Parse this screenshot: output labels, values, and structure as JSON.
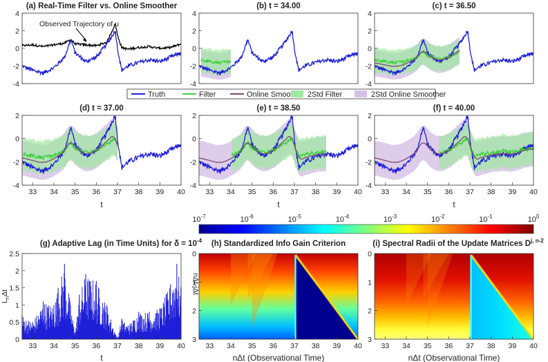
{
  "colors": {
    "truth": "#1f1fd8",
    "filter": "#3fd13f",
    "smoother": "#7a4a6e",
    "band_filter": "#9fe89f",
    "band_smoother": "#d6bfe6",
    "observed": "#000000"
  },
  "legend": {
    "entries": [
      "Truth",
      "Filter",
      "Online Smoother",
      "2Std Filter",
      "2Std Online Smoother"
    ]
  },
  "colorbar": {
    "scale": "log",
    "range": [
      1e-07,
      1
    ],
    "ticks": [
      {
        "base": "10",
        "exp": "-7"
      },
      {
        "base": "10",
        "exp": "-6"
      },
      {
        "base": "10",
        "exp": "-5"
      },
      {
        "base": "10",
        "exp": "-4"
      },
      {
        "base": "10",
        "exp": "-3"
      },
      {
        "base": "10",
        "exp": "-2"
      },
      {
        "base": "10",
        "exp": "-1"
      },
      {
        "base": "10",
        "exp": "0"
      }
    ]
  },
  "chart_data": [
    {
      "id": "a",
      "type": "line",
      "title": "(a) Real-Time Filter vs. Online Smoother",
      "annotation": "Observed Trajectory of u",
      "xlim": [
        32.5,
        40
      ],
      "ylim": [
        -4,
        4
      ],
      "yticks": [
        "4",
        "2",
        "0",
        "-2",
        "-4"
      ],
      "series": [
        {
          "name": "Observed Trajectory of u",
          "role": "observed",
          "x": [
            32.5,
            33,
            33.5,
            34,
            34.5,
            34.8,
            35,
            35.5,
            36,
            36.5,
            36.9,
            37,
            37.2,
            37.5,
            38,
            38.5,
            39,
            39.5,
            40
          ],
          "y": [
            0.3,
            0.4,
            0.2,
            0.4,
            0.6,
            1.0,
            0.5,
            0.4,
            0.3,
            0.7,
            2.8,
            1.5,
            0.1,
            -0.1,
            0.1,
            0.2,
            0.0,
            0.1,
            0.5
          ]
        },
        {
          "name": "Truth",
          "role": "truth",
          "x": [
            32.5,
            33,
            33.5,
            34,
            34.5,
            34.8,
            35,
            35.5,
            36,
            36.5,
            36.9,
            37,
            37.2,
            37.5,
            38,
            38.5,
            39,
            39.5,
            40
          ],
          "y": [
            -2.0,
            -2.5,
            -2.8,
            -2.2,
            -1.0,
            1.0,
            -0.5,
            -1.5,
            -1.0,
            0.5,
            2.0,
            0.0,
            -2.5,
            -2.0,
            -1.6,
            -1.3,
            -1.5,
            -1.0,
            -0.5
          ]
        }
      ]
    },
    {
      "id": "b",
      "type": "line",
      "title": "(b) t = 34.00",
      "xlim": [
        32.5,
        40
      ],
      "ylim": [
        -4,
        4
      ],
      "yticks": [
        "4",
        "2",
        "0",
        "-2",
        "-4"
      ],
      "t_current": 34.0
    },
    {
      "id": "c",
      "type": "line",
      "title": "(c) t = 36.50",
      "xlim": [
        32.5,
        40
      ],
      "ylim": [
        -4,
        4
      ],
      "yticks": [
        "4",
        "2",
        "0",
        "-2",
        "-4"
      ],
      "t_current": 36.5
    },
    {
      "id": "d",
      "type": "line",
      "title": "(d) t = 37.00",
      "xlim": [
        32.5,
        40
      ],
      "ylim": [
        -4,
        2
      ],
      "yticks": [
        "2",
        "0",
        "-2",
        "-4"
      ],
      "xticks": [
        "33",
        "34",
        "35",
        "36",
        "37",
        "38",
        "39",
        "40"
      ],
      "xlabel": "t",
      "t_current": 37.0
    },
    {
      "id": "e",
      "type": "line",
      "title": "(e) t = 38.50",
      "xlim": [
        32.5,
        40
      ],
      "ylim": [
        -4,
        2
      ],
      "yticks": [
        "2",
        "0",
        "-2",
        "-4"
      ],
      "xticks": [
        "33",
        "34",
        "35",
        "36",
        "37",
        "38",
        "39",
        "40"
      ],
      "xlabel": "t",
      "t_current": 38.5
    },
    {
      "id": "f",
      "type": "line",
      "title": "(f) t = 40.00",
      "xlim": [
        32.5,
        40
      ],
      "ylim": [
        -4,
        2
      ],
      "yticks": [
        "2",
        "0",
        "-2",
        "-4"
      ],
      "xticks": [
        "33",
        "34",
        "35",
        "36",
        "37",
        "38",
        "39",
        "40"
      ],
      "xlabel": "t",
      "t_current": 40.0
    },
    {
      "id": "g",
      "type": "bar",
      "title_main": "(g) Adaptive Lag (in Time Units) for δ = 10",
      "title_sup": "-4",
      "ylabel_main": "L",
      "ylabel_sub": "n",
      "ylabel_rest": "Δt",
      "xlabel": "t",
      "xlim": [
        32.5,
        40
      ],
      "ylim": [
        0,
        2.5
      ],
      "yticks": [
        "2.5",
        "2",
        "1.5",
        "1",
        "0.5",
        "0"
      ],
      "xticks": [
        "33",
        "34",
        "35",
        "36",
        "37",
        "38",
        "39",
        "40"
      ],
      "x": [
        32.5,
        33,
        33.5,
        34,
        34.2,
        34.5,
        35,
        35.2,
        35.5,
        36,
        36.5,
        37,
        37.2,
        37.5,
        38,
        38.5,
        39,
        39.5,
        39.8,
        40
      ],
      "values": [
        0.7,
        0.5,
        1.1,
        1.0,
        1.5,
        2.2,
        0.2,
        1.3,
        1.9,
        1.7,
        1.0,
        0.0,
        0.6,
        0.4,
        0.8,
        0.8,
        0.9,
        1.6,
        2.2,
        1.5
      ]
    },
    {
      "id": "h",
      "type": "heatmap",
      "title": "(h) Standardized Info Gain Criterion",
      "xlabel": "nΔt (Observational Time)",
      "ylabel": "nΔt-jΔt",
      "xlim": [
        32.5,
        40
      ],
      "ylim": [
        0,
        3
      ],
      "yticks": [
        "0",
        "1",
        "2",
        "3"
      ],
      "xticks": [
        "33",
        "34",
        "35",
        "36",
        "37",
        "38",
        "39",
        "40"
      ]
    },
    {
      "id": "i",
      "type": "heatmap",
      "title_main": "(i) Spectral Radii of the Update Matrices D",
      "title_sup": "j, n-2",
      "xlabel": "nΔt (Observational Time)",
      "xlim": [
        32.5,
        40
      ],
      "ylim": [
        0,
        3
      ],
      "yticks": [
        "0",
        "1",
        "2",
        "3"
      ],
      "xticks": [
        "33",
        "34",
        "35",
        "36",
        "37",
        "38",
        "39",
        "40"
      ]
    }
  ]
}
